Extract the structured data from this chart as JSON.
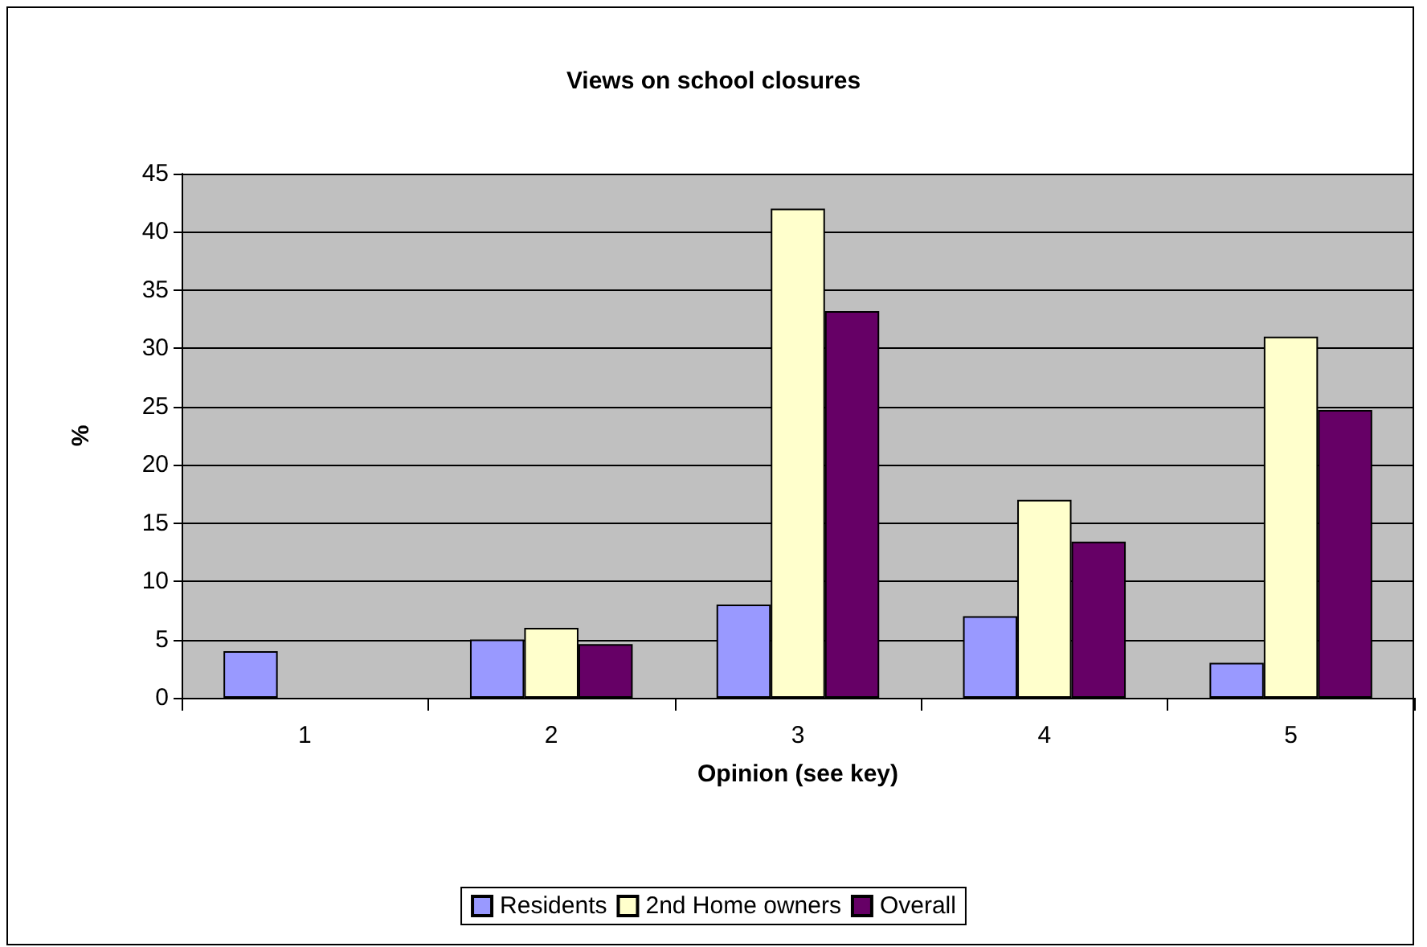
{
  "chart_data": {
    "type": "bar",
    "title": "Views on school closures",
    "xlabel": "Opinion (see key)",
    "ylabel": "%",
    "categories": [
      "1",
      "2",
      "3",
      "4",
      "5"
    ],
    "series": [
      {
        "name": "Residents",
        "color": "#9999ff",
        "values": [
          4,
          5,
          8,
          7,
          3
        ]
      },
      {
        "name": "2nd Home owners",
        "color": "#ffffcc",
        "values": [
          null,
          6,
          42,
          17,
          31
        ]
      },
      {
        "name": "Overall",
        "color": "#660066",
        "values": [
          null,
          4.6,
          33.2,
          13.4,
          24.7
        ]
      }
    ],
    "ylim": [
      0,
      45
    ],
    "yticks": [
      0,
      5,
      10,
      15,
      20,
      25,
      30,
      35,
      40,
      45
    ],
    "grid": "y",
    "legend": "bottom"
  }
}
